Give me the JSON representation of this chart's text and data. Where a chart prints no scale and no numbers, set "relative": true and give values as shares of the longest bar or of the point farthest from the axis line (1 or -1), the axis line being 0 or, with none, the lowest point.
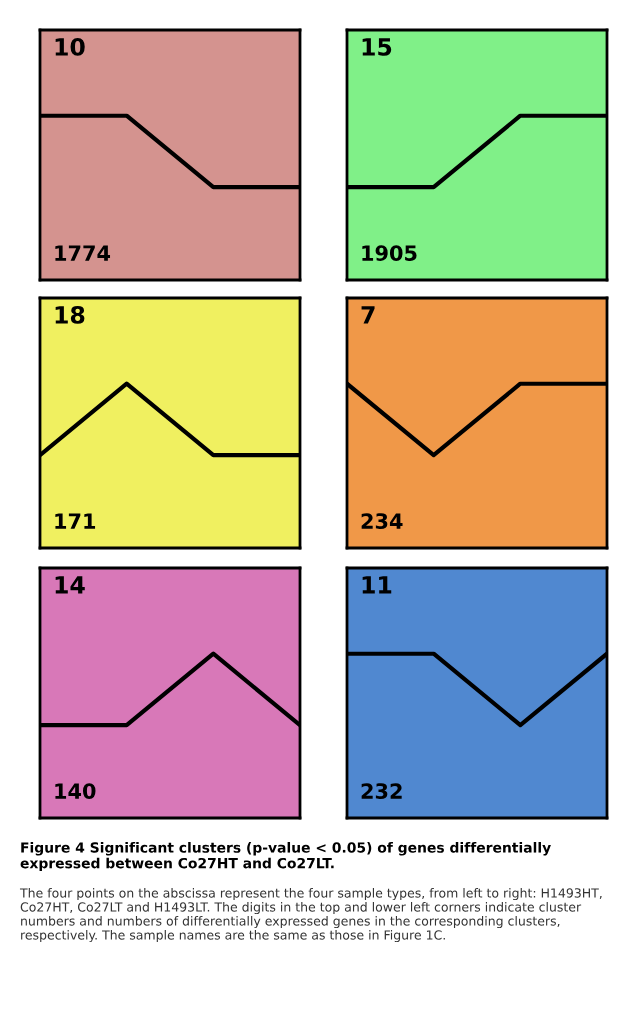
{
  "chart_data": [
    {
      "type": "line",
      "relative": true,
      "title": "10",
      "categories": [
        null,
        null,
        null,
        null
      ],
      "series": [
        {
          "color": "#000000",
          "values": [
            1,
            1,
            0,
            0
          ]
        }
      ],
      "annotations": [
        "1774"
      ]
    },
    {
      "type": "line",
      "relative": true,
      "title": "15",
      "categories": [
        null,
        null,
        null,
        null
      ],
      "series": [
        {
          "color": "#000000",
          "values": [
            0,
            0,
            1,
            1
          ]
        }
      ],
      "annotations": [
        "1905"
      ]
    },
    {
      "type": "line",
      "relative": true,
      "title": "18",
      "categories": [
        null,
        null,
        null,
        null
      ],
      "series": [
        {
          "color": "#000000",
          "values": [
            0,
            1,
            0,
            0
          ]
        }
      ],
      "annotations": [
        "171"
      ]
    },
    {
      "type": "line",
      "relative": true,
      "title": "7",
      "categories": [
        null,
        null,
        null,
        null
      ],
      "series": [
        {
          "color": "#000000",
          "values": [
            1,
            0,
            1,
            1
          ]
        }
      ],
      "annotations": [
        "234"
      ]
    },
    {
      "type": "line",
      "relative": true,
      "title": "14",
      "categories": [
        null,
        null,
        null,
        null
      ],
      "series": [
        {
          "color": "#000000",
          "values": [
            0,
            0,
            1,
            0
          ]
        }
      ],
      "annotations": [
        "140"
      ]
    },
    {
      "type": "line",
      "relative": true,
      "title": "11",
      "categories": [
        null,
        null,
        null,
        null
      ],
      "series": [
        {
          "color": "#000000",
          "values": [
            1,
            1,
            0,
            1
          ]
        }
      ],
      "annotations": [
        "232",
        "Figure 4 Significant clusters (p-value < 0.05) of genes differentially expressed between Co27HT and Co27LT.",
        "The four points on the abscissa represent the four sample types, from left to right: H1493HT, Co27HT, Co27LT and H1493LT. The digits in the top and lower left corners indicate cluster numbers and numbers of differentially expressed genes in the corresponding clusters, respectively. The sample names are the same as those in Figure 1C."
      ]
    }
  ]
}
